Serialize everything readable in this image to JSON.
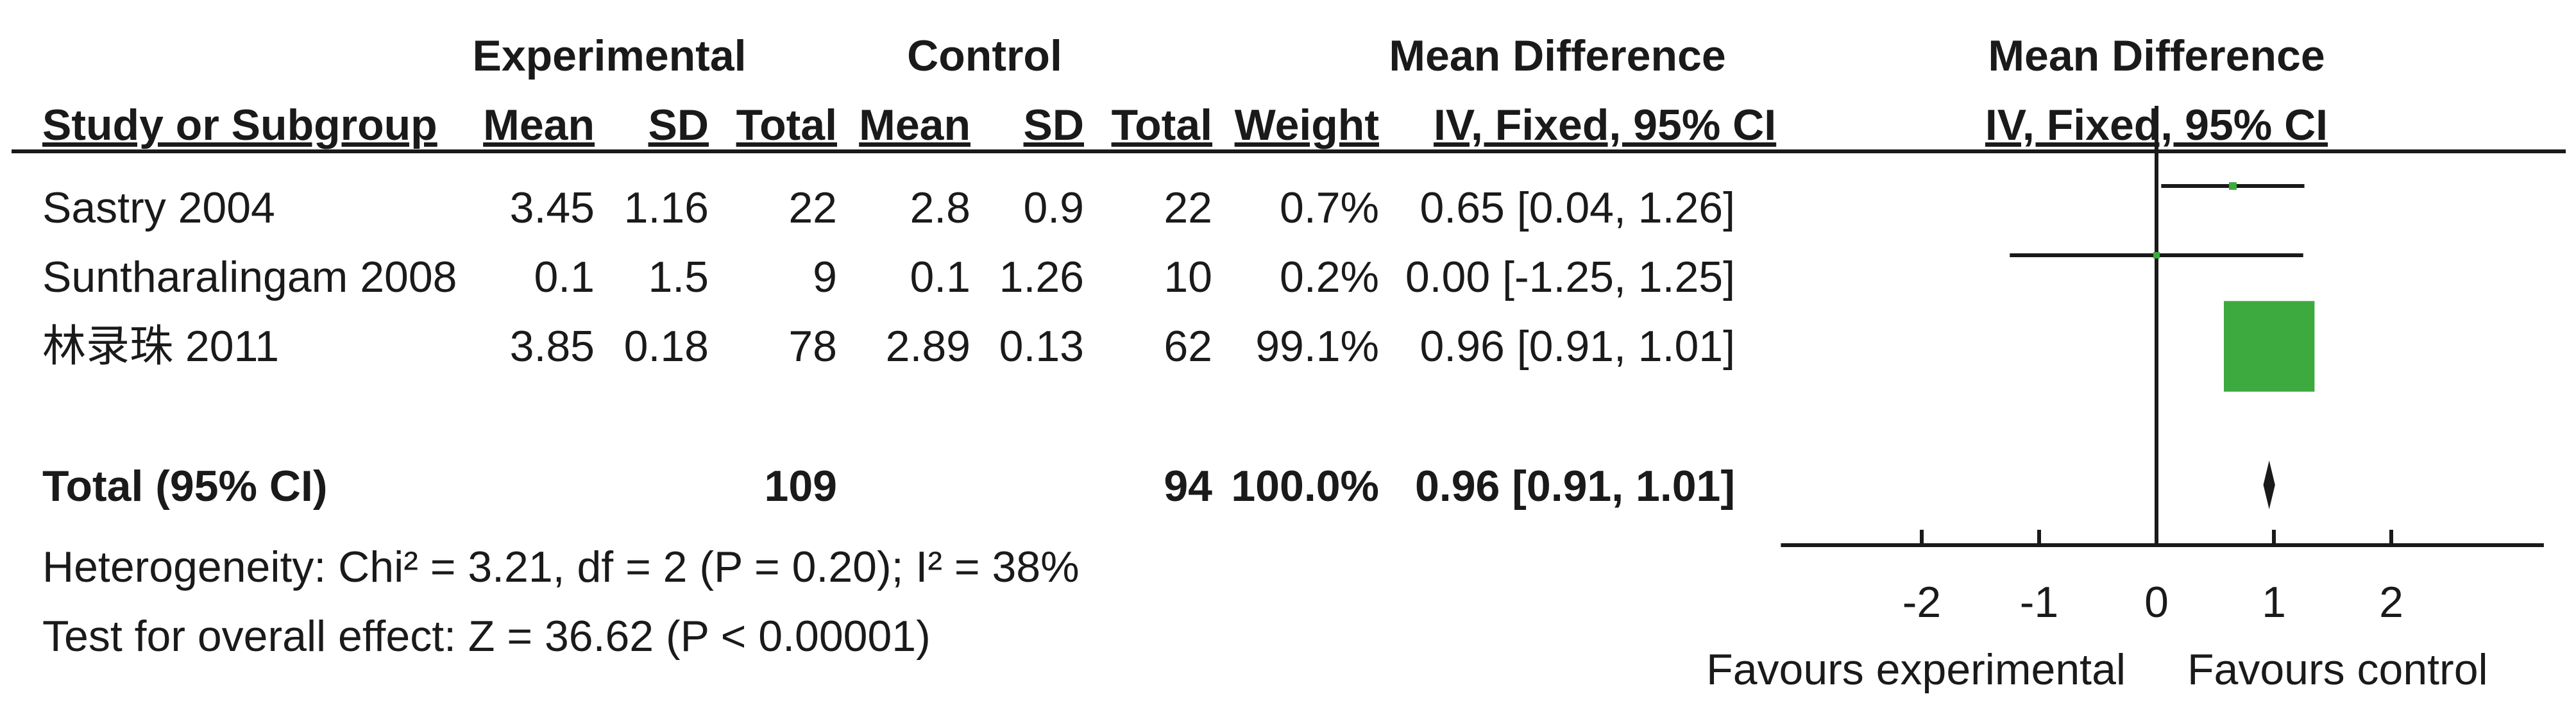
{
  "chart_data": {
    "type": "forest",
    "header": {
      "group1": "Experimental",
      "group2": "Control",
      "effect_col": "Mean Difference",
      "plot_col": "Mean Difference",
      "study_col": "Study or Subgroup",
      "mean": "Mean",
      "sd": "SD",
      "total": "Total",
      "weight": "Weight",
      "method": "IV, Fixed, 95% CI",
      "plot_method": "IV, Fixed, 95% CI"
    },
    "studies": [
      {
        "name": "Sastry 2004",
        "e_mean": "3.45",
        "e_sd": "1.16",
        "e_total": "22",
        "c_mean": "2.8",
        "c_sd": "0.9",
        "c_total": "22",
        "weight": "0.7%",
        "ci_text": "0.65 [0.04, 1.26]",
        "est": 0.65,
        "lo": 0.04,
        "hi": 1.26,
        "w": 0.7
      },
      {
        "name": "Suntharalingam 2008",
        "e_mean": "0.1",
        "e_sd": "1.5",
        "e_total": "9",
        "c_mean": "0.1",
        "c_sd": "1.26",
        "c_total": "10",
        "weight": "0.2%",
        "ci_text": "0.00 [-1.25, 1.25]",
        "est": 0.0,
        "lo": -1.25,
        "hi": 1.25,
        "w": 0.2
      },
      {
        "name": "林录珠 2011",
        "e_mean": "3.85",
        "e_sd": "0.18",
        "e_total": "78",
        "c_mean": "2.89",
        "c_sd": "0.13",
        "c_total": "62",
        "weight": "99.1%",
        "ci_text": "0.96 [0.91, 1.01]",
        "est": 0.96,
        "lo": 0.91,
        "hi": 1.01,
        "w": 99.1
      }
    ],
    "total": {
      "name": "Total (95% CI)",
      "e_total": "109",
      "c_total": "94",
      "weight": "100.0%",
      "ci_text": "0.96 [0.91, 1.01]",
      "est": 0.96,
      "lo": 0.91,
      "hi": 1.01
    },
    "heterogeneity": "Heterogeneity: Chi² = 3.21, df = 2 (P = 0.20); I² = 38%",
    "overall_effect": "Test for overall effect: Z = 36.62 (P < 0.00001)",
    "x_axis": {
      "min": -3.2,
      "max": 3.3,
      "ticks": [
        -2,
        -1,
        0,
        1,
        2
      ],
      "tick_labels": [
        "-2",
        "-1",
        "0",
        "1",
        "2"
      ]
    },
    "favours_left": "Favours experimental",
    "favours_right": "Favours control",
    "colors": {
      "marker": "#3daa40",
      "line": "#1a1a1a"
    }
  }
}
